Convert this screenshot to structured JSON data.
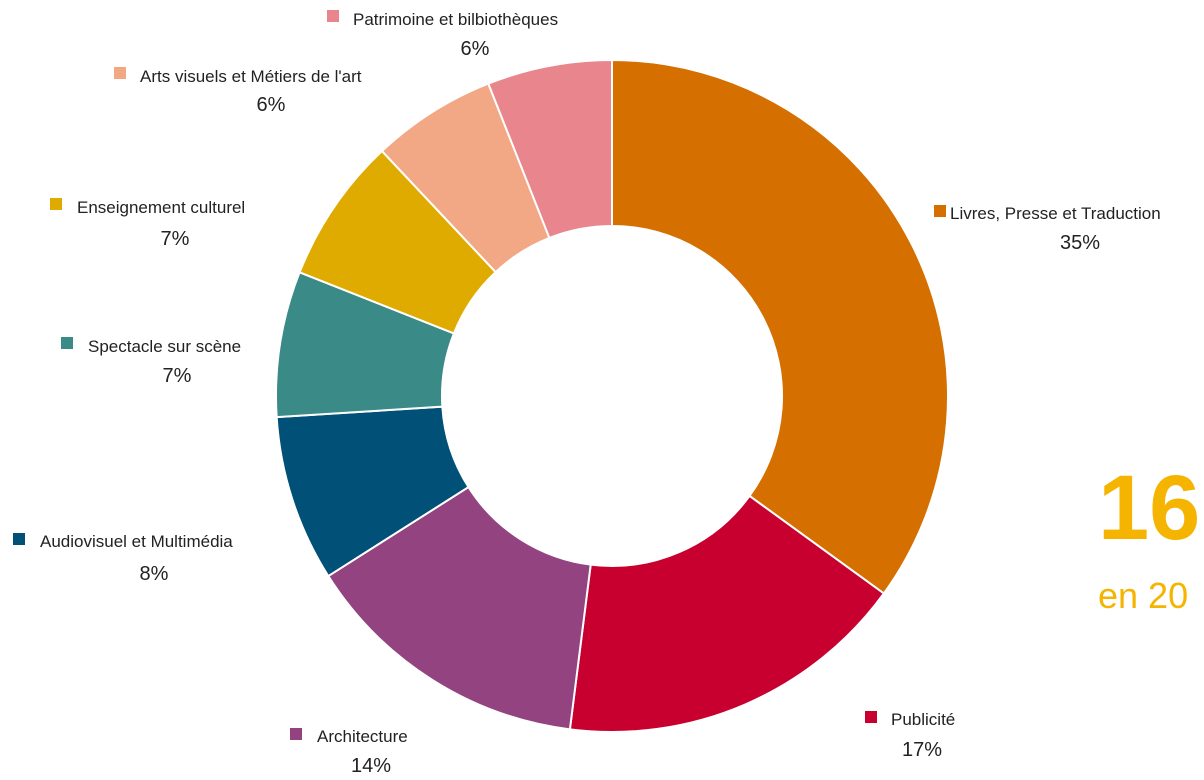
{
  "chart_data": {
    "type": "pie",
    "categories": [
      "Livres, Presse et Traduction",
      "Publicité",
      "Architecture",
      "Audiovisuel et Multimédia",
      "Spectacle sur scène",
      "Enseignement culturel",
      "Arts visuels et Métiers de l'art",
      "Patrimoine et bilbiothèques"
    ],
    "values": [
      35,
      17,
      14,
      8,
      7,
      7,
      6,
      6
    ],
    "value_labels": [
      "35%",
      "17%",
      "14%",
      "8%",
      "7%",
      "7%",
      "6%",
      "6%"
    ],
    "colors": [
      "#D46F00",
      "#C8002F",
      "#924380",
      "#005078",
      "#3A8B87",
      "#E0AB00",
      "#F2A785",
      "#E9858C"
    ],
    "donut": true,
    "start_angle": "12 o'clock, clockwise",
    "legend": "labels beside slices"
  },
  "highlight": {
    "number": "16",
    "subtitle": "en 20",
    "color": "#F5B400"
  }
}
